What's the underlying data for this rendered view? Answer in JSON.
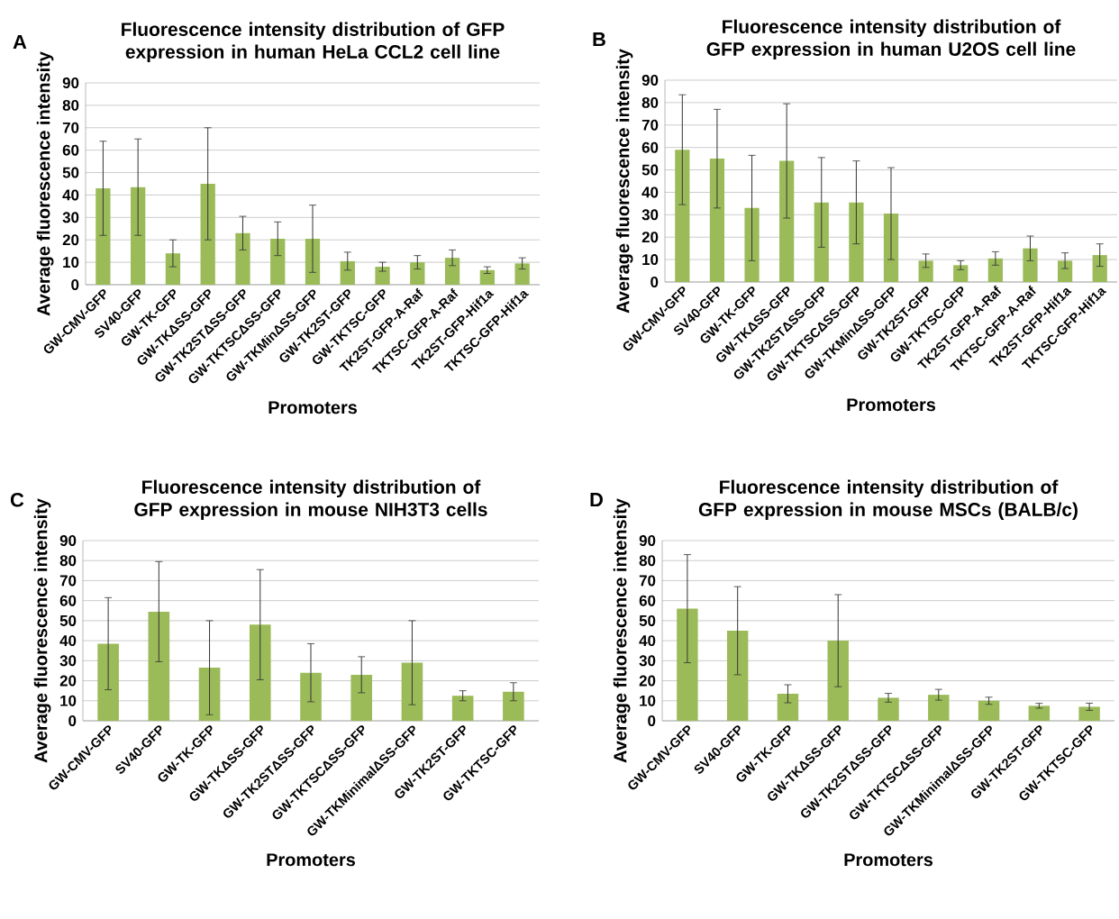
{
  "chart_data": [
    {
      "type": "bar",
      "title": "Fluorescence intensity distribution of GFP expression in human HeLa CCL2 cell line",
      "xlabel": "Promoters",
      "ylabel": "Average fluorescence intensity",
      "annotations": [
        "A"
      ],
      "categories": [
        "GW-CMV-GFP",
        "SV40-GFP",
        "GW-TK-GFP",
        "GW-TKΔSS-GFP",
        "GW-TK2STΔSS-GFP",
        "GW-TKTSCΔSS-GFP",
        "GW-TKMinΔSS-GFP",
        "GW-TK2ST-GFP",
        "GW-TKTSC-GFP",
        "TK2ST-GFP-A-Raf",
        "TKTSC-GFP-A-Raf",
        "TK2ST-GFP-Hif1a",
        "TKTSC-GFP-Hif1a"
      ],
      "values": [
        43,
        43.5,
        14,
        45,
        23,
        20.5,
        20.5,
        10.5,
        8,
        10,
        12,
        6.5,
        9.5
      ],
      "errors": [
        21,
        21.5,
        6,
        25,
        7.5,
        7.5,
        15,
        4,
        2,
        3,
        3.5,
        1.5,
        2.5
      ],
      "color": "#9bbb59",
      "ylim": [
        0,
        90
      ],
      "yticks": [
        0,
        10,
        20,
        30,
        40,
        50,
        60,
        70,
        80,
        90
      ],
      "grid": "y"
    },
    {
      "type": "bar",
      "title": "Fluorescence intensity distribution of GFP expression in human U2OS cell line",
      "xlabel": "Promoters",
      "ylabel": "Average fluorescence intensity",
      "annotations": [
        "B"
      ],
      "categories": [
        "GW-CMV-GFP",
        "SV40-GFP",
        "GW-TK-GFP",
        "GW-TKΔSS-GFP",
        "GW-TK2STΔSS-GFP",
        "GW-TKTSCΔSS-GFP",
        "GW-TKMinΔSS-GFP",
        "GW-TK2ST-GFP",
        "GW-TKTSC-GFP",
        "TK2ST-GFP-A-Raf",
        "TKTSC-GFP-A-Raf",
        "TK2ST-GFP-Hif1a",
        "TKTSC-GFP-Hif1a"
      ],
      "values": [
        59,
        55,
        33,
        54,
        35.5,
        35.5,
        30.5,
        9.5,
        7.5,
        10.5,
        15,
        9.5,
        12
      ],
      "errors": [
        24.5,
        22,
        23.5,
        25.5,
        20,
        18.5,
        20.5,
        3,
        2,
        3,
        5.5,
        3.5,
        5
      ],
      "color": "#9bbb59",
      "ylim": [
        0,
        90
      ],
      "yticks": [
        0,
        10,
        20,
        30,
        40,
        50,
        60,
        70,
        80,
        90
      ],
      "grid": "y"
    },
    {
      "type": "bar",
      "title": "Fluorescence intensity distribution of GFP expression in mouse NIH3T3 cells",
      "xlabel": "Promoters",
      "ylabel": "Average fluorescence intensity",
      "annotations": [
        "C"
      ],
      "categories": [
        "GW-CMV-GFP",
        "SV40-GFP",
        "GW-TK-GFP",
        "GW-TKΔSS-GFP",
        "GW-TK2STΔSS-GFP",
        "GW-TKTSCΔSS-GFP",
        "GW-TKMinimalΔSS-GFP",
        "GW-TK2ST-GFP",
        "GW-TKTSC-GFP"
      ],
      "values": [
        38.5,
        54.5,
        26.5,
        48,
        24,
        23,
        29,
        12.5,
        14.5
      ],
      "errors": [
        23,
        25,
        23.5,
        27.5,
        14.5,
        9,
        21,
        2.5,
        4.5
      ],
      "color": "#9bbb59",
      "ylim": [
        0,
        90
      ],
      "yticks": [
        0,
        10,
        20,
        30,
        40,
        50,
        60,
        70,
        80,
        90
      ],
      "grid": "y"
    },
    {
      "type": "bar",
      "title": "Fluorescence intensity distribution of GFP expression in mouse MSCs (BALB/c)",
      "xlabel": "Promoters",
      "ylabel": "Average fluorescence intensity",
      "annotations": [
        "D"
      ],
      "categories": [
        "GW-CMV-GFP",
        "SV40-GFP",
        "GW-TK-GFP",
        "GW-TKΔSS-GFP",
        "GW-TK2STΔSS-GFP",
        "GW-TKTSCΔSS-GFP",
        "GW-TKMinimalΔSS-GFP",
        "GW-TK2ST-GFP",
        "GW-TKTSC-GFP"
      ],
      "values": [
        56,
        45,
        13.5,
        40,
        11.5,
        13,
        10,
        7.5,
        7
      ],
      "errors": [
        27,
        22,
        4.5,
        23,
        2.2,
        2.7,
        1.8,
        1.2,
        1.8
      ],
      "color": "#9bbb59",
      "ylim": [
        0,
        90
      ],
      "yticks": [
        0,
        10,
        20,
        30,
        40,
        50,
        60,
        70,
        80,
        90
      ],
      "grid": "y"
    }
  ]
}
